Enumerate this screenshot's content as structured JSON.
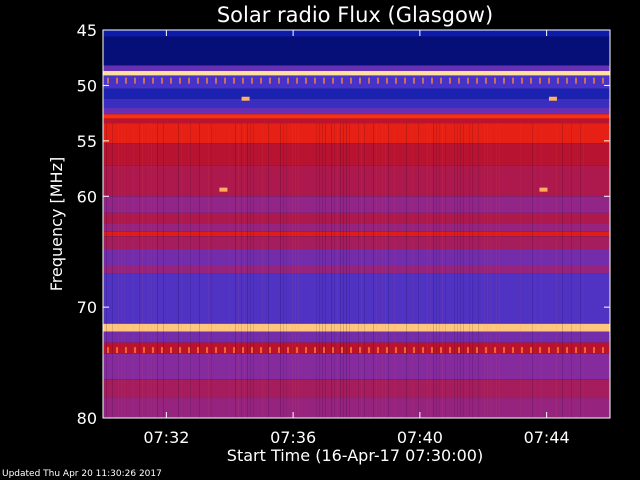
{
  "chart_data": {
    "type": "heatmap",
    "title": "Solar radio Flux (Glasgow)",
    "xlabel": "Start Time (16-Apr-17 07:30:00)",
    "ylabel": "Frequency [MHz]",
    "x_range_minutes": [
      0,
      16
    ],
    "x_ticks": [
      {
        "minute": 2,
        "label": "07:32"
      },
      {
        "minute": 6,
        "label": "07:36"
      },
      {
        "minute": 10,
        "label": "07:40"
      },
      {
        "minute": 14,
        "label": "07:44"
      }
    ],
    "ylim": [
      45,
      80
    ],
    "y_ticks": [
      45,
      50,
      55,
      60,
      70,
      80
    ],
    "colormap": [
      "#00003a",
      "#0a1aa8",
      "#4a34c8",
      "#8a2a9a",
      "#c01020",
      "#ff2a10",
      "#ff9a40",
      "#ffe0a0"
    ],
    "frequency_bands": [
      {
        "from": 45,
        "to": 45.6,
        "level": 0.15
      },
      {
        "from": 45.6,
        "to": 48.2,
        "level": 0.08
      },
      {
        "from": 48.2,
        "to": 48.7,
        "level": 0.35
      },
      {
        "from": 48.7,
        "to": 49.1,
        "level": 1.0
      },
      {
        "from": 49.1,
        "to": 50.3,
        "level": 0.28
      },
      {
        "from": 50.3,
        "to": 51.2,
        "level": 0.18
      },
      {
        "from": 51.2,
        "to": 52.0,
        "level": 0.25
      },
      {
        "from": 52.0,
        "to": 52.6,
        "level": 0.35
      },
      {
        "from": 52.6,
        "to": 53.0,
        "level": 0.72
      },
      {
        "from": 53.0,
        "to": 53.4,
        "level": 0.55
      },
      {
        "from": 53.4,
        "to": 55.2,
        "level": 0.66
      },
      {
        "from": 55.2,
        "to": 57.2,
        "level": 0.55
      },
      {
        "from": 57.2,
        "to": 60.0,
        "level": 0.52
      },
      {
        "from": 60.0,
        "to": 61.5,
        "level": 0.45
      },
      {
        "from": 61.5,
        "to": 62.5,
        "level": 0.52
      },
      {
        "from": 62.5,
        "to": 63.2,
        "level": 0.46
      },
      {
        "from": 63.2,
        "to": 63.6,
        "level": 0.64
      },
      {
        "from": 63.6,
        "to": 64.8,
        "level": 0.5
      },
      {
        "from": 64.8,
        "to": 66.2,
        "level": 0.38
      },
      {
        "from": 66.2,
        "to": 67.0,
        "level": 0.46
      },
      {
        "from": 67.0,
        "to": 71.5,
        "level": 0.3
      },
      {
        "from": 71.5,
        "to": 72.2,
        "level": 0.95
      },
      {
        "from": 72.2,
        "to": 73.2,
        "level": 0.38
      },
      {
        "from": 73.2,
        "to": 74.2,
        "level": 0.56
      },
      {
        "from": 74.2,
        "to": 76.5,
        "level": 0.42
      },
      {
        "from": 76.5,
        "to": 78.2,
        "level": 0.5
      },
      {
        "from": 78.2,
        "to": 80,
        "level": 0.46
      }
    ],
    "bright_spots": [
      {
        "minute": 3.8,
        "mhz": 59.4
      },
      {
        "minute": 13.9,
        "mhz": 59.4
      },
      {
        "minute": 4.5,
        "mhz": 51.2
      },
      {
        "minute": 14.2,
        "mhz": 51.2
      }
    ],
    "grid": false,
    "legend": "none"
  },
  "footer": {
    "updated_text": "Updated Thu Apr 20 11:30:26 2017"
  }
}
